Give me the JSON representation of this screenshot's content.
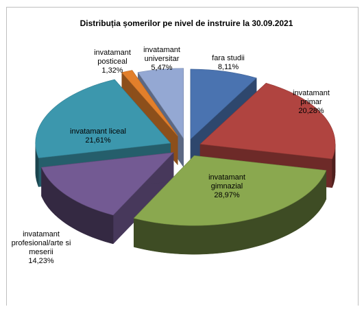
{
  "chart_data": {
    "type": "pie",
    "style": "3d-exploded",
    "title": "Distribuția șomerilor pe nivel de  instruire la 30.09.2021",
    "legend": "none",
    "slices": [
      {
        "label": "fara studii",
        "value": 8.11,
        "value_label": "8,11%",
        "color": "#4a73b0",
        "label_color": "#000000"
      },
      {
        "label": "invatamant primar",
        "value": 20.28,
        "value_label": "20,28%",
        "color": "#b04440",
        "label_color": "#000000"
      },
      {
        "label": "invatamant gimnazial",
        "value": 28.97,
        "value_label": "28,97%",
        "color": "#8aa84f",
        "label_color": "#000000"
      },
      {
        "label": "invatamant profesional/arte si meserii",
        "value": 14.23,
        "value_label": "14,23%",
        "color": "#735a93",
        "label_color": "#000000"
      },
      {
        "label": "invatamant liceal",
        "value": 21.61,
        "value_label": "21,61%",
        "color": "#3c97ad",
        "label_color": "#000000"
      },
      {
        "label": "invatamant posticeal",
        "value": 1.32,
        "value_label": "1,32%",
        "color": "#e27f2b",
        "label_color": "#000000"
      },
      {
        "label": "invatamant universitar",
        "value": 5.47,
        "value_label": "5,47%",
        "color": "#94a8d3",
        "label_color": "#000000"
      }
    ]
  }
}
